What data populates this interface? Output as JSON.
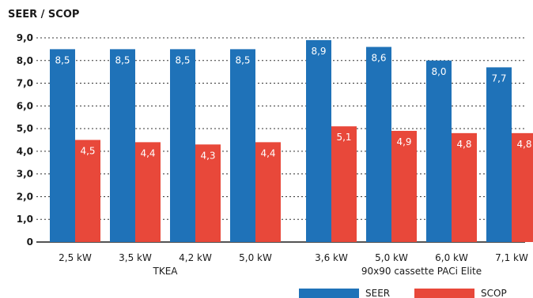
{
  "chart_data": {
    "type": "bar",
    "ylabel": "SEER / SCOP",
    "ylim": [
      0,
      9
    ],
    "yticks": [
      "0",
      "1,0",
      "2,0",
      "3,0",
      "4,0",
      "5,0",
      "6,0",
      "7,0",
      "8,0",
      "9,0"
    ],
    "grid": "dotted horizontal",
    "categories": [
      "2,5 kW",
      "3,5 kW",
      "4,2 kW",
      "5,0 kW",
      "3,6 kW",
      "5,0 kW",
      "6,0 kW",
      "7,1 kW"
    ],
    "groups": [
      {
        "label": "TKEA",
        "categories": [
          "2,5 kW",
          "3,5 kW",
          "4,2 kW",
          "5,0 kW"
        ]
      },
      {
        "label": "90x90 cassette PACi Elite",
        "categories": [
          "3,6 kW",
          "5,0 kW",
          "6,0 kW",
          "7,1 kW"
        ]
      }
    ],
    "series": [
      {
        "name": "SEER",
        "color": "#1f72b8",
        "values": [
          8.5,
          8.5,
          8.5,
          8.5,
          8.9,
          8.6,
          8.0,
          7.7
        ],
        "labels": [
          "8,5",
          "8,5",
          "8,5",
          "8,5",
          "8,9",
          "8,6",
          "8,0",
          "7,7"
        ]
      },
      {
        "name": "SCOP",
        "color": "#e8483a",
        "values": [
          4.5,
          4.4,
          4.3,
          4.4,
          5.1,
          4.9,
          4.8,
          4.8
        ],
        "labels": [
          "4,5",
          "4,4",
          "4,3",
          "4,4",
          "5,1",
          "4,9",
          "4,8",
          "4,8"
        ]
      }
    ],
    "legend": "bottom-right"
  }
}
